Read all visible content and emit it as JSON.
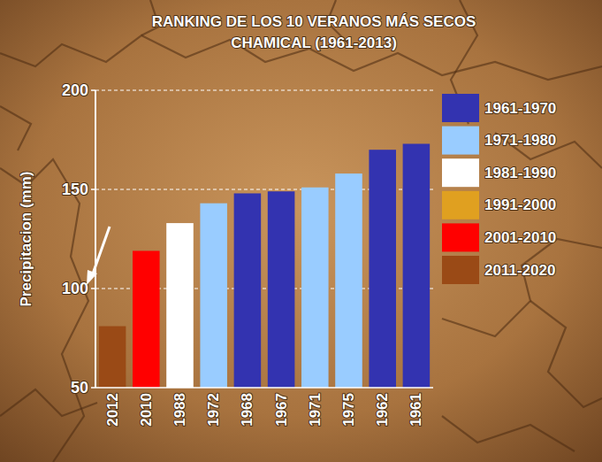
{
  "chart_data": {
    "type": "bar",
    "title": "RANKING DE LOS 10 VERANOS MÁS SECOS",
    "subtitle": "CHAMICAL (1961-2013)",
    "ylabel": "Precipitacion (mm)",
    "categories": [
      "2012",
      "2010",
      "1988",
      "1972",
      "1968",
      "1967",
      "1971",
      "1975",
      "1962",
      "1961"
    ],
    "series": [
      {
        "name": "1961-1970",
        "color": "#3333b0",
        "values": [
          null,
          null,
          null,
          null,
          148,
          149,
          null,
          null,
          170,
          173
        ]
      },
      {
        "name": "1971-1980",
        "color": "#99ccff",
        "values": [
          null,
          null,
          null,
          143,
          null,
          null,
          151,
          158,
          null,
          null
        ]
      },
      {
        "name": "1981-1990",
        "color": "#ffffff",
        "values": [
          null,
          null,
          133,
          null,
          null,
          null,
          null,
          null,
          null,
          null
        ]
      },
      {
        "name": "1991-2000",
        "color": "#e0a020",
        "values": [
          null,
          null,
          null,
          null,
          null,
          null,
          null,
          null,
          null,
          null
        ]
      },
      {
        "name": "2001-2010",
        "color": "#ff0000",
        "values": [
          null,
          119,
          null,
          null,
          null,
          null,
          null,
          null,
          null,
          null
        ]
      },
      {
        "name": "2011-2020",
        "color": "#9a4a16",
        "values": [
          81,
          null,
          null,
          null,
          null,
          null,
          null,
          null,
          null,
          null
        ]
      }
    ],
    "ylim": [
      50,
      200
    ],
    "yticks": [
      50,
      100,
      150,
      200
    ],
    "grid": true,
    "stacked": true,
    "legend": "right"
  }
}
